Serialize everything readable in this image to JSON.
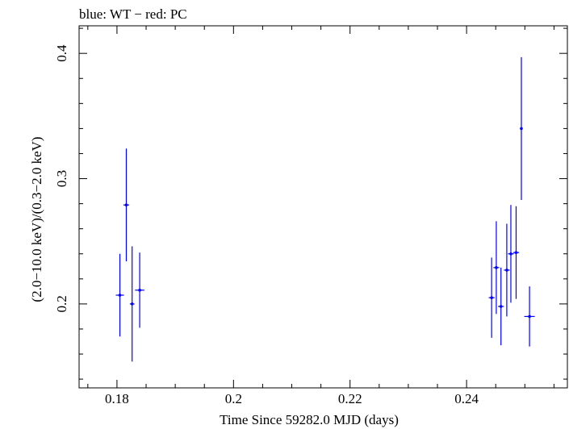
{
  "chart_data": {
    "type": "scatter",
    "title": "blue: WT − red: PC",
    "xlabel": "Time Since 59282.0 MJD (days)",
    "ylabel": "(2.0−10.0 keV)/(0.3−2.0 keV)",
    "xlim": [
      0.1735,
      0.2573
    ],
    "ylim": [
      0.133,
      0.422
    ],
    "x_ticks": [
      {
        "value": 0.18,
        "label": "0.18"
      },
      {
        "value": 0.2,
        "label": "0.2"
      },
      {
        "value": 0.22,
        "label": "0.22"
      },
      {
        "value": 0.24,
        "label": "0.24"
      }
    ],
    "y_ticks": [
      {
        "value": 0.2,
        "label": "0.2"
      },
      {
        "value": 0.3,
        "label": "0.3"
      },
      {
        "value": 0.4,
        "label": "0.4"
      }
    ],
    "grid": false,
    "series": [
      {
        "color": "#0000ff",
        "points": [
          {
            "x": 0.1805,
            "xerr": 0.0007,
            "y": 0.207,
            "yerr": 0.033
          },
          {
            "x": 0.1816,
            "xerr": 0.0005,
            "y": 0.279,
            "yerr": 0.045
          },
          {
            "x": 0.1826,
            "xerr": 0.0004,
            "y": 0.2,
            "yerr": 0.046
          },
          {
            "x": 0.1839,
            "xerr": 0.0008,
            "y": 0.211,
            "yerr": 0.03
          },
          {
            "x": 0.2443,
            "xerr": 0.0005,
            "y": 0.205,
            "yerr": 0.032
          },
          {
            "x": 0.2451,
            "xerr": 0.0005,
            "y": 0.229,
            "yerr": 0.037
          },
          {
            "x": 0.2459,
            "xerr": 0.0005,
            "y": 0.198,
            "yerr": 0.031
          },
          {
            "x": 0.2469,
            "xerr": 0.0005,
            "y": 0.227,
            "yerr": 0.037
          },
          {
            "x": 0.2476,
            "xerr": 0.0005,
            "y": 0.24,
            "yerr": 0.039
          },
          {
            "x": 0.2485,
            "xerr": 0.0005,
            "y": 0.241,
            "yerr": 0.037
          },
          {
            "x": 0.2494,
            "xerr": 0.0002,
            "y": 0.34,
            "yerr": 0.057
          },
          {
            "x": 0.2508,
            "xerr": 0.0009,
            "y": 0.19,
            "yerr": 0.024
          }
        ]
      }
    ]
  }
}
